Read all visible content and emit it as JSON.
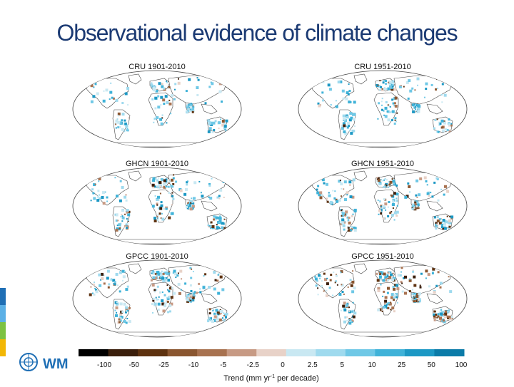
{
  "slide": {
    "title": "Observational evidence of climate changes",
    "logo_text": "WM",
    "side_bar_colors": [
      "#1f6fb5",
      "#5bb0e6",
      "#7dc242",
      "#f2b705"
    ]
  },
  "panels": [
    {
      "label": "CRU 1901-2010",
      "intensity": 0.35,
      "dry_share": 0.12
    },
    {
      "label": "CRU 1951-2010",
      "intensity": 0.45,
      "dry_share": 0.18
    },
    {
      "label": "GHCN 1901-2010",
      "intensity": 0.65,
      "dry_share": 0.25
    },
    {
      "label": "GHCN 1951-2010",
      "intensity": 0.75,
      "dry_share": 0.35
    },
    {
      "label": "GPCC 1901-2010",
      "intensity": 0.9,
      "dry_share": 0.3
    },
    {
      "label": "GPCC 1951-2010",
      "intensity": 0.95,
      "dry_share": 0.45
    }
  ],
  "colorbar": {
    "ticks": [
      "-100",
      "-50",
      "-25",
      "-10",
      "-5",
      "-2.5",
      "0",
      "2.5",
      "5",
      "10",
      "25",
      "50",
      "100"
    ],
    "colors": [
      "#000000",
      "#3b1f0c",
      "#5e3210",
      "#8a5630",
      "#a87250",
      "#c79a84",
      "#e8d2c8",
      "#c9e8f2",
      "#9fdaee",
      "#6fc8e6",
      "#3fb2d8",
      "#1c98c4",
      "#0b7ba8"
    ],
    "title": "Trend (mm yr",
    "title_sup": "-1",
    "title_end": " per decade)"
  },
  "map_colors": {
    "ocean": "#ffffff",
    "land": "#ffffff",
    "outline": "#444444",
    "wet": [
      "#c9e8f2",
      "#9fdaee",
      "#6fc8e6",
      "#3fb2d8",
      "#1c98c4"
    ],
    "dry": [
      "#e8d2c8",
      "#c79a84",
      "#a87250",
      "#8a5630",
      "#5e3210",
      "#3b1f0c"
    ]
  }
}
